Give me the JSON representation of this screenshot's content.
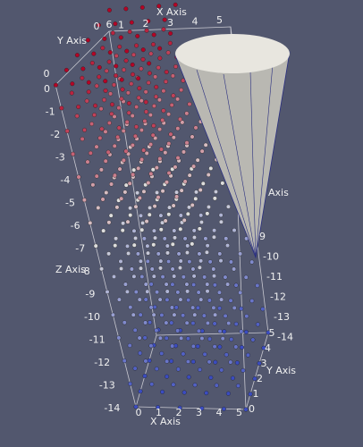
{
  "x_axis": {
    "title": "X Axis",
    "top_ticks": [
      "0",
      "1",
      "2",
      "3",
      "4",
      "5"
    ],
    "bottom_ticks": [
      "0",
      "1",
      "2",
      "3",
      "4",
      "5"
    ]
  },
  "y_axis": {
    "title": "Y Axis",
    "top_ticks": [
      "0",
      "6"
    ],
    "bottom_ticks": [
      "0",
      "1",
      "2",
      "3",
      "4",
      "5"
    ]
  },
  "z_axis": {
    "title": "Z Axis",
    "left_ticks": [
      "0",
      "-1",
      "-2",
      "-3",
      "-4",
      "-5",
      "-6",
      "-7",
      "-8",
      "-9",
      "-10",
      "-11",
      "-12",
      "-13",
      "-14"
    ],
    "right_ticks": [
      "9",
      "-10",
      "-11",
      "-12",
      "-13",
      "-14"
    ]
  },
  "glyph_label": "Axis"
}
